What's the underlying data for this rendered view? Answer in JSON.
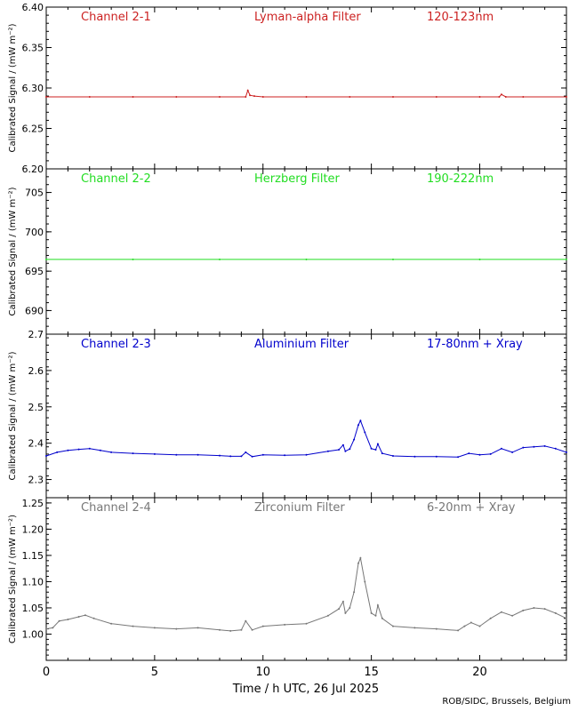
{
  "figure": {
    "xlabel": "Time / h UTC, 26 Jul 2025",
    "credit": "ROB/SIDC, Brussels, Belgium",
    "x_ticks": [
      "0",
      "5",
      "10",
      "15",
      "20"
    ]
  },
  "chart_data": [
    {
      "type": "scatter",
      "channel": "Channel 2-1",
      "filter": "Lyman-alpha Filter",
      "band": "120-123nm",
      "color": "#cc2222",
      "ylabel": "Calibrated Signal / (mW m⁻²)",
      "xlim": [
        0,
        24
      ],
      "ylim": [
        6.2,
        6.4
      ],
      "y_ticks": [
        "6.20",
        "6.25",
        "6.30",
        "6.35",
        "6.40"
      ],
      "x": [
        0,
        2,
        4,
        6,
        8,
        9.2,
        9.3,
        9.4,
        9.6,
        10,
        12,
        14,
        16,
        18,
        20,
        20.9,
        21,
        21.2,
        22,
        24
      ],
      "y": [
        6.289,
        6.289,
        6.289,
        6.289,
        6.289,
        6.289,
        6.297,
        6.291,
        6.29,
        6.289,
        6.289,
        6.289,
        6.289,
        6.289,
        6.289,
        6.289,
        6.292,
        6.289,
        6.289,
        6.289
      ]
    },
    {
      "type": "scatter",
      "channel": "Channel 2-2",
      "filter": "Herzberg Filter",
      "band": "190-222nm",
      "color": "#22dd22",
      "ylabel": "Calibrated Signal / (mW m⁻²)",
      "xlim": [
        0,
        24
      ],
      "ylim": [
        687,
        708
      ],
      "y_ticks": [
        "690",
        "695",
        "700",
        "705"
      ],
      "x": [
        0,
        4,
        8,
        12,
        16,
        20,
        24
      ],
      "y": [
        696.5,
        696.5,
        696.5,
        696.5,
        696.5,
        696.5,
        696.5
      ]
    },
    {
      "type": "scatter",
      "channel": "Channel 2-3",
      "filter": "Aluminium Filter",
      "band": "17-80nm + Xray",
      "color": "#0000cc",
      "ylabel": "Calibrated Signal / (mW m⁻²)",
      "xlim": [
        0,
        24
      ],
      "ylim": [
        2.25,
        2.7
      ],
      "y_ticks": [
        "2.3",
        "2.4",
        "2.5",
        "2.6",
        "2.7"
      ],
      "x": [
        0,
        0.5,
        1,
        1.5,
        2,
        2.5,
        3,
        4,
        5,
        6,
        7,
        8,
        8.5,
        9,
        9.2,
        9.5,
        10,
        11,
        12,
        13,
        13.5,
        13.7,
        13.8,
        14,
        14.2,
        14.4,
        14.5,
        14.7,
        15,
        15.2,
        15.3,
        15.5,
        16,
        17,
        18,
        19,
        19.5,
        20,
        20.5,
        21,
        21.5,
        22,
        22.5,
        23,
        23.5,
        24
      ],
      "y": [
        2.365,
        2.375,
        2.38,
        2.383,
        2.385,
        2.38,
        2.375,
        2.372,
        2.37,
        2.368,
        2.368,
        2.366,
        2.364,
        2.364,
        2.375,
        2.363,
        2.368,
        2.367,
        2.368,
        2.378,
        2.382,
        2.395,
        2.378,
        2.384,
        2.41,
        2.45,
        2.462,
        2.43,
        2.385,
        2.382,
        2.398,
        2.372,
        2.365,
        2.363,
        2.363,
        2.362,
        2.372,
        2.368,
        2.37,
        2.385,
        2.375,
        2.388,
        2.39,
        2.392,
        2.385,
        2.375
      ]
    },
    {
      "type": "scatter",
      "channel": "Channel 2-4",
      "filter": "Zirconium Filter",
      "band": "6-20nm + Xray",
      "color": "#777777",
      "ylabel": "Calibrated Signal / (mW m⁻²)",
      "xlim": [
        0,
        24
      ],
      "ylim": [
        0.95,
        1.26
      ],
      "y_ticks": [
        "1.00",
        "1.05",
        "1.10",
        "1.15",
        "1.20",
        "1.25"
      ],
      "x": [
        0,
        0.3,
        0.6,
        1,
        1.5,
        1.8,
        2.2,
        3,
        4,
        5,
        6,
        7,
        8,
        8.5,
        9,
        9.2,
        9.5,
        10,
        11,
        12,
        13,
        13.5,
        13.7,
        13.8,
        14,
        14.2,
        14.4,
        14.5,
        14.7,
        15,
        15.2,
        15.3,
        15.5,
        16,
        17,
        18,
        19,
        19.3,
        19.6,
        20,
        20.5,
        21,
        21.5,
        22,
        22.5,
        23,
        23.5,
        24
      ],
      "y": [
        1.01,
        1.012,
        1.025,
        1.028,
        1.033,
        1.036,
        1.03,
        1.02,
        1.015,
        1.012,
        1.01,
        1.012,
        1.008,
        1.006,
        1.008,
        1.025,
        1.008,
        1.015,
        1.018,
        1.02,
        1.035,
        1.048,
        1.062,
        1.04,
        1.05,
        1.08,
        1.135,
        1.145,
        1.1,
        1.04,
        1.035,
        1.055,
        1.03,
        1.015,
        1.012,
        1.01,
        1.007,
        1.015,
        1.022,
        1.015,
        1.03,
        1.042,
        1.035,
        1.045,
        1.05,
        1.048,
        1.04,
        1.03
      ]
    }
  ]
}
